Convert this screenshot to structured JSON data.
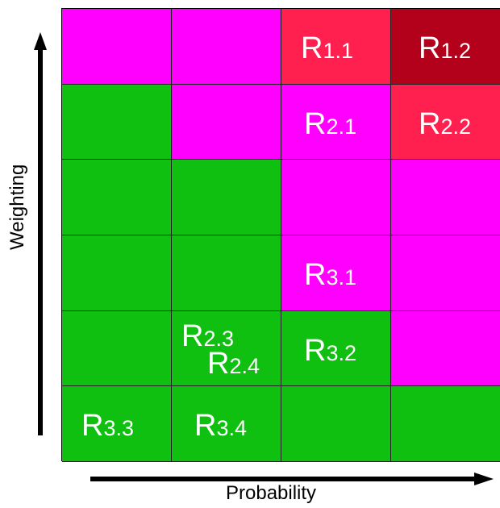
{
  "colors": {
    "green": "#10c010",
    "magenta": "#ff00ff",
    "red": "#ff2050",
    "dark_red": "#b3001b"
  },
  "axes": {
    "x_label": "Probability",
    "y_label": "Weighting"
  },
  "grid": {
    "rows": 6,
    "cols": 4,
    "cells": [
      [
        "magenta",
        "magenta",
        "red",
        "dark_red"
      ],
      [
        "green",
        "magenta",
        "magenta",
        "red"
      ],
      [
        "green",
        "green",
        "magenta",
        "magenta"
      ],
      [
        "green",
        "green",
        "magenta",
        "magenta"
      ],
      [
        "green",
        "green",
        "green",
        "magenta"
      ],
      [
        "green",
        "green",
        "green",
        "green"
      ]
    ]
  },
  "risks": [
    {
      "main": "R",
      "sub": "1.1",
      "row": 0,
      "col": 2
    },
    {
      "main": "R",
      "sub": "1.2",
      "row": 0,
      "col": 3
    },
    {
      "main": "R",
      "sub": "2.1",
      "row": 1,
      "col": 2
    },
    {
      "main": "R",
      "sub": "2.2",
      "row": 1,
      "col": 3
    },
    {
      "main": "R",
      "sub": "3.1",
      "row": 3,
      "col": 2
    },
    {
      "main": "R",
      "sub": "2.3",
      "row": 4,
      "col": 1
    },
    {
      "main": "R",
      "sub": "2.4",
      "row": 4,
      "col": 1
    },
    {
      "main": "R",
      "sub": "3.2",
      "row": 4,
      "col": 2
    },
    {
      "main": "R",
      "sub": "3.3",
      "row": 5,
      "col": 0
    },
    {
      "main": "R",
      "sub": "3.4",
      "row": 5,
      "col": 1
    }
  ]
}
